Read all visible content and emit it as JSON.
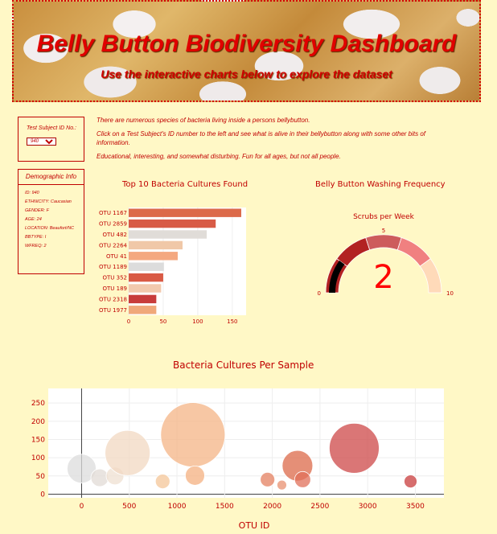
{
  "header": {
    "title": "Belly Button Biodiversity Dashboard",
    "subtitle": "Use the interactive charts below to explore the dataset"
  },
  "subject_select": {
    "label": "Test Subject ID No.:",
    "selected": "940"
  },
  "demographics": {
    "title": "Demographic Info",
    "rows": [
      "ID: 940",
      "ETHNICITY: Caucasian",
      "GENDER: F",
      "AGE: 24",
      "LOCATION: Beaufort/NC",
      "BBTYPE: I",
      "WFREQ: 2"
    ]
  },
  "intro": {
    "p1": "There are numerous species of bacteria living inside a persons bellybutton.",
    "p2": "Click on a Test Subject's ID number to the left and see what is alive in their bellybutton along with some other bits of information.",
    "p3": "Educational, interesting, and somewhat disturbing. Fun for all ages, but not all people."
  },
  "colors": {
    "accent": "#c00000",
    "background": "#fff8c6"
  },
  "chart_data": [
    {
      "type": "bar",
      "orientation": "horizontal",
      "title": "Top 10 Bacteria Cultures Found",
      "categories": [
        "OTU 1167",
        "OTU 2859",
        "OTU 482",
        "OTU 2264",
        "OTU 41",
        "OTU 1189",
        "OTU 352",
        "OTU 189",
        "OTU 2318",
        "OTU 1977"
      ],
      "values": [
        163,
        126,
        113,
        78,
        71,
        51,
        50,
        47,
        40,
        40
      ],
      "colors": [
        "#dc6a4a",
        "#d85b46",
        "#e0dcd8",
        "#f0c8a8",
        "#f4a880",
        "#dcdcdc",
        "#d95a45",
        "#f2c9ad",
        "#c83c3c",
        "#f0a87a"
      ],
      "xticks": [
        "0",
        "50",
        "100",
        "150"
      ],
      "xlim": [
        0,
        170
      ]
    },
    {
      "type": "gauge",
      "title": "Belly Button Washing Frequency",
      "subtitle": "Scrubs per Week",
      "value": 2,
      "range": [
        0,
        10
      ],
      "ticks": [
        "0",
        "5",
        "10"
      ],
      "bands": [
        {
          "from": 0,
          "to": 2,
          "color": "#b22222"
        },
        {
          "from": 2,
          "to": 4,
          "color": "#b22222"
        },
        {
          "from": 4,
          "to": 6,
          "color": "#cd5c5c"
        },
        {
          "from": 6,
          "to": 8,
          "color": "#f08080"
        },
        {
          "from": 8,
          "to": 10,
          "color": "#ffdab9"
        }
      ]
    },
    {
      "type": "scatter",
      "title": "Bacteria Cultures Per Sample",
      "xlabel": "OTU ID",
      "xticks": [
        "0",
        "500",
        "1000",
        "1500",
        "2000",
        "2500",
        "3000",
        "3500"
      ],
      "yticks": [
        "0",
        "50",
        "100",
        "150",
        "200",
        "250"
      ],
      "xlim": [
        -350,
        3800
      ],
      "ylim": [
        -10,
        290
      ],
      "points": [
        {
          "x": 0,
          "y": 70,
          "r": 18,
          "color": "#dcdcdc"
        },
        {
          "x": 190,
          "y": 45,
          "r": 11,
          "color": "#e2dbd5"
        },
        {
          "x": 350,
          "y": 50,
          "r": 11,
          "color": "#efe0d2"
        },
        {
          "x": 482,
          "y": 113,
          "r": 28,
          "color": "#f2d8c2"
        },
        {
          "x": 850,
          "y": 35,
          "r": 9,
          "color": "#f4c698"
        },
        {
          "x": 1167,
          "y": 163,
          "r": 40,
          "color": "#f4b486"
        },
        {
          "x": 1189,
          "y": 51,
          "r": 12,
          "color": "#f4b080"
        },
        {
          "x": 1950,
          "y": 40,
          "r": 9,
          "color": "#e48060"
        },
        {
          "x": 2100,
          "y": 25,
          "r": 6,
          "color": "#e89070"
        },
        {
          "x": 2264,
          "y": 78,
          "r": 19,
          "color": "#dc6a4a"
        },
        {
          "x": 2318,
          "y": 40,
          "r": 10,
          "color": "#e0705a"
        },
        {
          "x": 2859,
          "y": 126,
          "r": 31,
          "color": "#cd4848"
        },
        {
          "x": 3450,
          "y": 35,
          "r": 8,
          "color": "#c83c3c"
        }
      ]
    }
  ]
}
